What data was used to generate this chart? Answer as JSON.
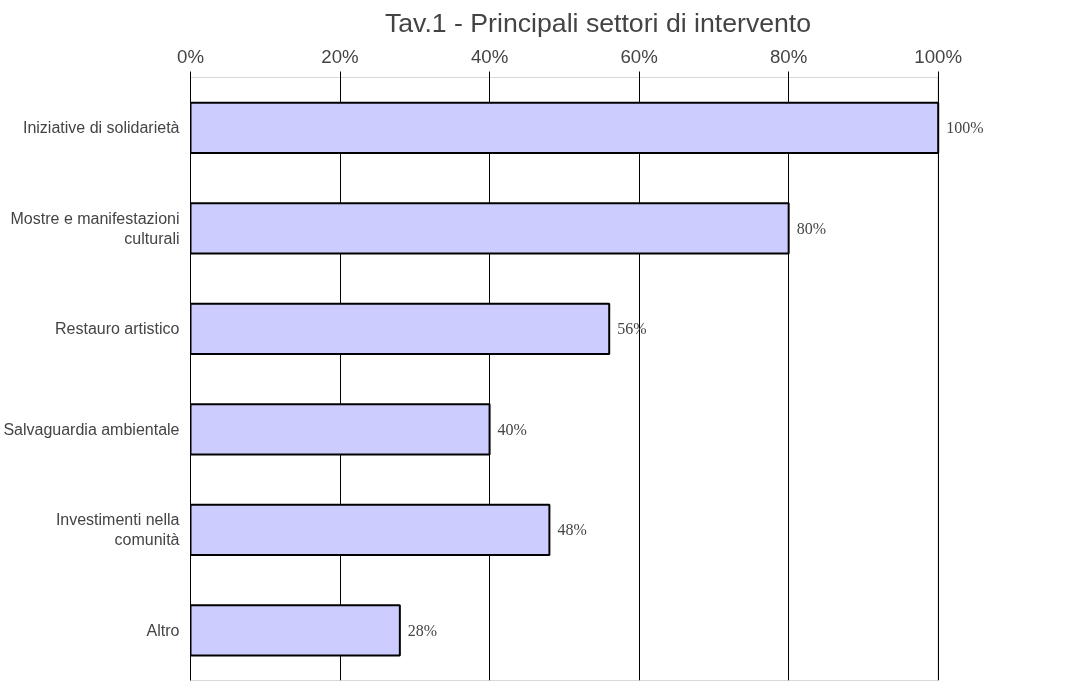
{
  "chart_data": {
    "type": "bar",
    "orientation": "horizontal",
    "title": "Tav.1 - Principali settori di intervento",
    "categories": [
      "Iniziative di solidarietà",
      "Mostre e manifestazioni culturali",
      "Restauro artistico",
      "Salvaguardia ambientale",
      "Investimenti nella comunità",
      "Altro"
    ],
    "values": [
      100,
      80,
      56,
      40,
      48,
      28
    ],
    "value_labels": [
      "100%",
      "80%",
      "56%",
      "40%",
      "48%",
      "28%"
    ],
    "color": "#ccccff",
    "xlim": [
      0,
      100
    ],
    "xticks": [
      {
        "value": 0,
        "label": "0%"
      },
      {
        "value": 20,
        "label": "20%"
      },
      {
        "value": 40,
        "label": "40%"
      },
      {
        "value": 60,
        "label": "60%"
      },
      {
        "value": 80,
        "label": "80%"
      },
      {
        "value": 100,
        "label": "100%"
      }
    ],
    "grid": "x"
  }
}
